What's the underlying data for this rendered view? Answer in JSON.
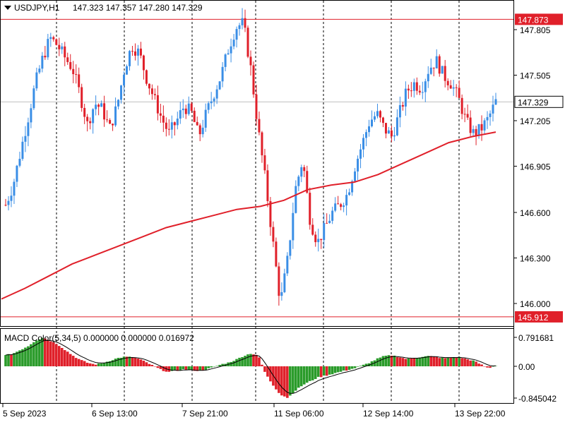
{
  "header": {
    "symbol_tf": "USDJPY,H1",
    "ohlc": "147.323 147.357 147.280 147.329"
  },
  "colors": {
    "bull": "#3a8ee6",
    "bear": "#e0202a",
    "ma": "#e0202a",
    "hline": "#e0202a",
    "macd_up": "#2a9b2a",
    "macd_down": "#e0202a",
    "signal": "#000000",
    "grid": "#000000"
  },
  "chart_data": [
    {
      "type": "candlestick",
      "title": "USDJPY,H1",
      "ohlc_readout": "147.323 147.357 147.280 147.329",
      "price_axis": {
        "ticks": [
          "147.805",
          "147.505",
          "147.205",
          "146.905",
          "146.600",
          "146.300",
          "146.000"
        ],
        "tick_values": [
          147.805,
          147.505,
          147.205,
          146.905,
          146.6,
          146.3,
          146.0
        ],
        "range": [
          145.9,
          147.9
        ]
      },
      "horizontal_lines": [
        {
          "value": 147.873,
          "label": "147.873"
        },
        {
          "value": 145.912,
          "label": "145.912"
        }
      ],
      "current_price": {
        "value": 147.329,
        "label": "147.329"
      },
      "time_axis": {
        "labels": [
          "5 Sep 2023",
          "6 Sep 13:00",
          "7 Sep 21:00",
          "11 Sep 06:00",
          "12 Sep 14:00",
          "13 Sep 22:00"
        ]
      },
      "moving_average": {
        "start": 146.03,
        "points": [
          146.03,
          146.1,
          146.18,
          146.26,
          146.32,
          146.38,
          146.44,
          146.5,
          146.54,
          146.58,
          146.62,
          146.64,
          146.68,
          146.75,
          146.78,
          146.8,
          146.85,
          146.92,
          146.99,
          147.06,
          147.1,
          147.13
        ]
      },
      "candles_price_path": [
        146.65,
        146.78,
        147.0,
        147.22,
        147.45,
        147.62,
        147.75,
        147.7,
        147.62,
        147.55,
        147.38,
        147.18,
        147.32,
        147.28,
        147.15,
        147.3,
        147.55,
        147.7,
        147.65,
        147.48,
        147.35,
        147.22,
        147.12,
        147.2,
        147.3,
        147.26,
        147.1,
        147.25,
        147.38,
        147.5,
        147.68,
        147.82,
        147.85,
        147.55,
        147.15,
        146.8,
        146.4,
        146.0,
        146.3,
        146.75,
        146.95,
        146.55,
        146.4,
        146.5,
        146.6,
        146.65,
        146.72,
        146.9,
        147.05,
        147.2,
        147.25,
        147.15,
        147.1,
        147.25,
        147.4,
        147.45,
        147.42,
        147.55,
        147.6,
        147.5,
        147.45,
        147.35,
        147.2,
        147.12,
        147.15,
        147.22,
        147.33
      ]
    },
    {
      "type": "histogram",
      "title": "MACD Color(5,34,5) 0.000000 0.000000 0.016972",
      "y_axis": {
        "ticks": [
          "0.791681",
          "0.00",
          "-0.845042"
        ],
        "range": [
          -0.845042,
          0.791681
        ]
      },
      "histogram_path": [
        0.3,
        0.35,
        0.45,
        0.55,
        0.7,
        0.79,
        0.7,
        0.6,
        0.45,
        0.3,
        0.18,
        0.1,
        0.05,
        0.08,
        0.15,
        0.22,
        0.26,
        0.25,
        0.2,
        0.1,
        0.0,
        -0.1,
        -0.15,
        -0.12,
        -0.08,
        -0.1,
        -0.12,
        -0.08,
        -0.02,
        0.05,
        0.1,
        0.18,
        0.28,
        0.35,
        0.3,
        -0.2,
        -0.5,
        -0.75,
        -0.84,
        -0.65,
        -0.5,
        -0.4,
        -0.3,
        -0.25,
        -0.2,
        -0.15,
        -0.1,
        -0.05,
        0.02,
        0.1,
        0.2,
        0.28,
        0.3,
        0.25,
        0.2,
        0.22,
        0.26,
        0.28,
        0.25,
        0.22,
        0.24,
        0.25,
        0.2,
        0.15,
        0.05,
        -0.05,
        0.02
      ]
    }
  ]
}
